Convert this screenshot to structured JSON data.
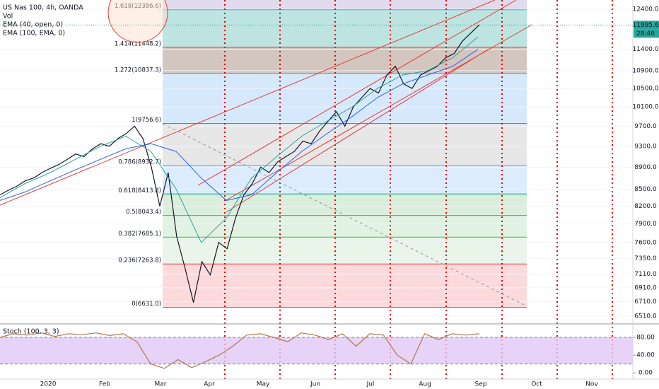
{
  "chart_data": {
    "type": "line",
    "title": "US Nas 100, 4h, OANDA",
    "indicators": [
      "Vol",
      "EMA (40, open, 0)",
      "EMA (100, EMA, 0)"
    ],
    "log_scale": true,
    "grid": true,
    "ylim": [
      6405,
      12642
    ],
    "yticks": [
      {
        "value": 12400,
        "label": "12400.0"
      },
      {
        "value": 11400,
        "label": "11400.0"
      },
      {
        "value": 10900,
        "label": "10900.0"
      },
      {
        "value": 10500,
        "label": "10500.0"
      },
      {
        "value": 10100,
        "label": "10100.0"
      },
      {
        "value": 9700,
        "label": "9700.0"
      },
      {
        "value": 9300,
        "label": "9300.0"
      },
      {
        "value": 8900,
        "label": "8900.0"
      },
      {
        "value": 8500,
        "label": "8500.0"
      },
      {
        "value": 8200,
        "label": "8200.0"
      },
      {
        "value": 7900,
        "label": "7900.0"
      },
      {
        "value": 7600,
        "label": "7600.0"
      },
      {
        "value": 7350,
        "label": "7350.0"
      },
      {
        "value": 7110,
        "label": "7110.0"
      },
      {
        "value": 6910,
        "label": "6910.0"
      },
      {
        "value": 6710,
        "label": "6710.0"
      },
      {
        "value": 6510,
        "label": "6510.0"
      }
    ],
    "x_labels": [
      "2020",
      "Feb",
      "Mar",
      "Apr",
      "May",
      "Jun",
      "Jul",
      "Aug",
      "Sep",
      "Oct",
      "Nov"
    ],
    "last_price": 11995.6,
    "countdown": "28:46",
    "series": [
      {
        "name": "US Nas 100, 4h, OANDA",
        "color": "#131722",
        "values": [
          8400,
          8480,
          8550,
          8650,
          8700,
          8800,
          8880,
          8950,
          9050,
          9150,
          9100,
          9250,
          9350,
          9300,
          9450,
          9550,
          9700,
          9450,
          8900,
          8200,
          8800,
          7700,
          7200,
          6700,
          7300,
          7100,
          7600,
          7500,
          8000,
          8400,
          8600,
          8900,
          8800,
          9000,
          9100,
          9200,
          9400,
          9350,
          9600,
          9800,
          10000,
          9700,
          10100,
          10300,
          10500,
          10400,
          10800,
          11000,
          10600,
          10500,
          10800,
          10900,
          11000,
          11200,
          11300,
          11600,
          11800,
          12000
        ]
      },
      {
        "name": "EMA (40, open, 0)",
        "color": "#26a69a",
        "values": [
          8350,
          8600,
          8800,
          9050,
          9300,
          9500,
          9200,
          8500,
          7600,
          8000,
          8700,
          9100,
          9500,
          9800,
          10100,
          10500,
          10800,
          10900,
          11200,
          11700
        ]
      },
      {
        "name": "EMA (100, EMA, 0)",
        "color": "#2962ff",
        "values": [
          8300,
          8450,
          8650,
          8850,
          9050,
          9250,
          9350,
          9200,
          8700,
          8300,
          8400,
          8800,
          9200,
          9550,
          9900,
          10300,
          10600,
          10800,
          11000,
          11400
        ]
      }
    ],
    "fib_levels": [
      {
        "label": "1.618(12386.6)",
        "value": 12386.6,
        "color": "#5b9cf6",
        "fill": "#b2dfdb"
      },
      {
        "label": "1.414(11448.2)",
        "value": 11448.2,
        "color": "#f23645",
        "fill": "#cbbcb3"
      },
      {
        "label": "1.272(10837.3)",
        "value": 10837.3,
        "color": "#4caf50",
        "fill": "#cfe5fb"
      },
      {
        "label": "1(9756.6)",
        "value": 9756.6,
        "color": "#787b86",
        "fill": "#e3e3e3"
      },
      {
        "label": "0.786(8932.7)",
        "value": 8932.7,
        "color": "#5b9cf6",
        "fill": "#d6e9fb"
      },
      {
        "label": "0.618(8413.8)",
        "value": 8413.8,
        "color": "#089981",
        "fill": "#d3ecd5"
      },
      {
        "label": "0.5(8043.4)",
        "value": 8043.4,
        "color": "#4caf50",
        "fill": "#dcf0dd"
      },
      {
        "label": "0.382(7685.1)",
        "value": 7685.1,
        "color": "#4caf50",
        "fill": "#e4f3e4"
      },
      {
        "label": "0.236(7263.8)",
        "value": 7263.8,
        "color": "#f23645",
        "fill": "#fbd3d6"
      },
      {
        "label": "0(6631.0)",
        "value": 6631.0,
        "color": "#787b86",
        "fill": "none"
      }
    ],
    "stoch": {
      "name": "Stoch (100, 3, 3)",
      "color": "#b1784e",
      "band_color": "#e1c8f5",
      "ylim": [
        -14,
        107
      ],
      "yticks": [
        {
          "value": 80,
          "label": "80.00"
        },
        {
          "value": 40,
          "label": "40.00"
        },
        {
          "value": 0,
          "label": "0.00"
        }
      ],
      "values": [
        80,
        88,
        85,
        90,
        82,
        88,
        86,
        90,
        84,
        88,
        70,
        20,
        10,
        30,
        12,
        25,
        40,
        60,
        85,
        88,
        80,
        70,
        90,
        85,
        75,
        88,
        60,
        88,
        85,
        40,
        20,
        88,
        75,
        88,
        85,
        88
      ]
    }
  }
}
